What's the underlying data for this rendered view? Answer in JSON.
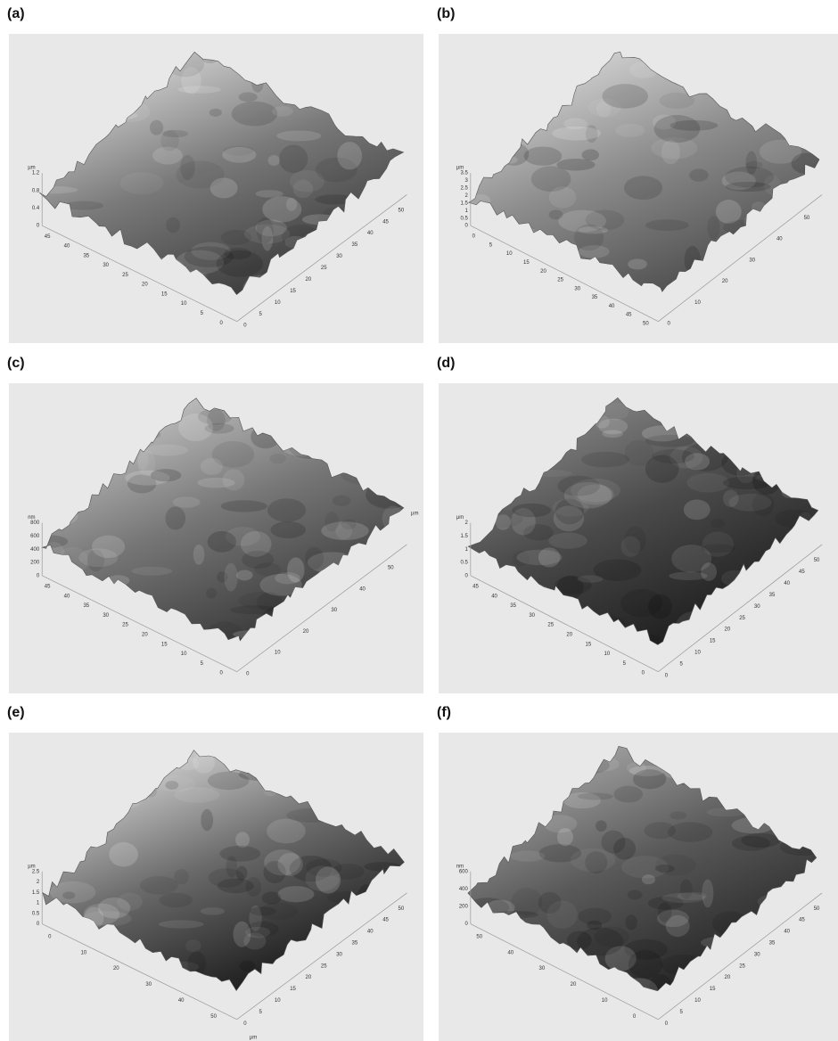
{
  "panels": [
    {
      "label": "(a)",
      "z_unit": "µm",
      "z_ticks": [
        "1.2",
        "0.8",
        "0.4",
        "0"
      ],
      "left_ticks": [
        "45",
        "40",
        "35",
        "30",
        "25",
        "20",
        "15",
        "10",
        "5",
        "0"
      ],
      "right_ticks": [
        "0",
        "5",
        "10",
        "15",
        "20",
        "25",
        "30",
        "35",
        "40",
        "45",
        "50"
      ]
    },
    {
      "label": "(b)",
      "z_unit": "µm",
      "z_ticks": [
        "3.5",
        "3",
        "2.5",
        "2",
        "1.5",
        "1",
        "0.5",
        "0"
      ],
      "left_ticks": [
        "0",
        "5",
        "10",
        "15",
        "20",
        "25",
        "30",
        "35",
        "40",
        "45",
        "50"
      ],
      "right_ticks": [
        "0",
        "10",
        "20",
        "30",
        "40",
        "50"
      ]
    },
    {
      "label": "(c)",
      "z_unit": "nm",
      "z_ticks": [
        "800",
        "600",
        "400",
        "200",
        "0"
      ],
      "left_ticks": [
        "45",
        "40",
        "35",
        "30",
        "25",
        "20",
        "15",
        "10",
        "5",
        "0"
      ],
      "right_ticks": [
        "0",
        "10",
        "20",
        "30",
        "40",
        "50"
      ],
      "side_unit": "µm"
    },
    {
      "label": "(d)",
      "z_unit": "µm",
      "z_ticks": [
        "2",
        "1.5",
        "1",
        "0.5",
        "0"
      ],
      "left_ticks": [
        "45",
        "40",
        "35",
        "30",
        "25",
        "20",
        "15",
        "10",
        "5",
        "0"
      ],
      "right_ticks": [
        "0",
        "5",
        "10",
        "15",
        "20",
        "25",
        "30",
        "35",
        "40",
        "45",
        "50"
      ]
    },
    {
      "label": "(e)",
      "z_unit": "µm",
      "z_ticks": [
        "2.5",
        "2",
        "1.5",
        "1",
        "0.5",
        "0"
      ],
      "left_ticks": [
        "0",
        "10",
        "20",
        "30",
        "40",
        "50"
      ],
      "right_ticks": [
        "0",
        "5",
        "10",
        "15",
        "20",
        "25",
        "30",
        "35",
        "40",
        "45",
        "50"
      ],
      "bottom_unit": "µm"
    },
    {
      "label": "(f)",
      "z_unit": "nm",
      "z_ticks": [
        "600",
        "400",
        "200",
        "0"
      ],
      "left_ticks": [
        "50",
        "40",
        "30",
        "20",
        "10",
        "0"
      ],
      "right_ticks": [
        "0",
        "5",
        "10",
        "15",
        "20",
        "25",
        "30",
        "35",
        "40",
        "45",
        "50"
      ]
    }
  ]
}
